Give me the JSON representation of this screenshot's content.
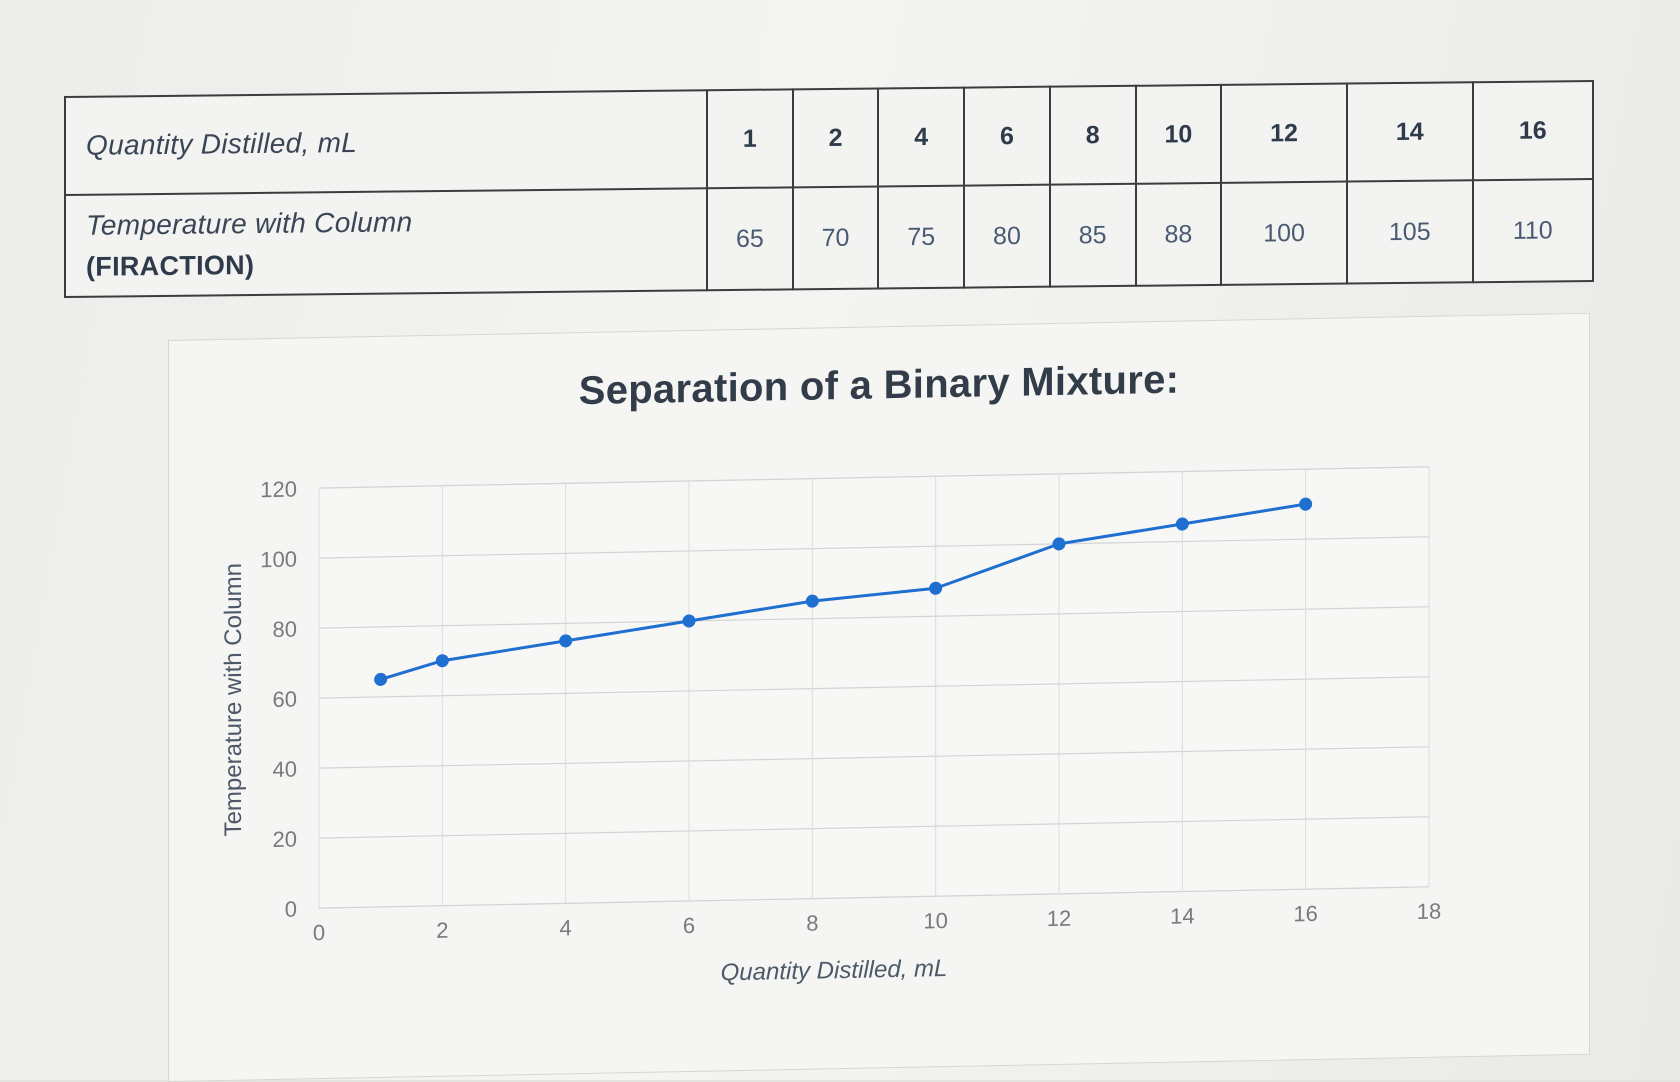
{
  "table": {
    "row1_header": "Quantity Distilled, mL",
    "row2_header": "Temperature with Column",
    "row2_subheader": "(FIRACTION)",
    "quantities": [
      "1",
      "2",
      "4",
      "6",
      "8",
      "10",
      "12",
      "14",
      "16"
    ],
    "temperatures": [
      "65",
      "70",
      "75",
      "80",
      "85",
      "88",
      "100",
      "105",
      "110"
    ]
  },
  "chart_data": {
    "type": "line",
    "title": "Separation of a Binary Mixture:",
    "xlabel": "Quantity Distilled, mL",
    "ylabel": "Temperature with Column",
    "xlim": [
      0,
      18
    ],
    "ylim": [
      0,
      120
    ],
    "x_ticks": [
      "0",
      "2",
      "4",
      "6",
      "8",
      "10",
      "12",
      "14",
      "16",
      "18"
    ],
    "y_ticks": [
      "0",
      "20",
      "40",
      "60",
      "80",
      "100",
      "120"
    ],
    "grid": true,
    "series": [
      {
        "color": "#1f6fd1",
        "x": [
          1,
          2,
          4,
          6,
          8,
          10,
          12,
          14,
          16
        ],
        "y": [
          65,
          70,
          75,
          80,
          85,
          88,
          100,
          105,
          110
        ]
      }
    ]
  }
}
